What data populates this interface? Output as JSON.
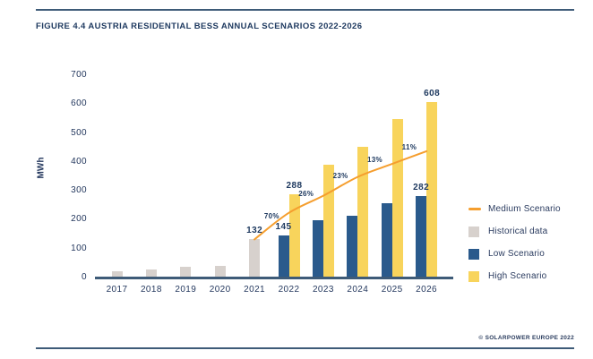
{
  "title": "FIGURE 4.4 AUSTRIA RESIDENTIAL BESS ANNUAL SCENARIOS 2022-2026",
  "footer": "© SOLARPOWER EUROPE 2022",
  "colors": {
    "navy_text": "#1F3A60",
    "axis_line": "#3E5B78",
    "historical": "#D7D1CD",
    "low": "#2A5A8C",
    "high": "#F8D45C",
    "medium_line": "#F59E2E"
  },
  "chart_data": {
    "type": "bar",
    "subtype": "grouped bars with overlaid line",
    "title": "FIGURE 4.4 AUSTRIA RESIDENTIAL BESS ANNUAL SCENARIOS 2022-2026",
    "xlabel": "",
    "ylabel": "MWh",
    "ylim": [
      0,
      700
    ],
    "yticks": [
      0,
      100,
      200,
      300,
      400,
      500,
      600,
      700
    ],
    "grid": false,
    "legend_position": "right",
    "categories": [
      "2017",
      "2018",
      "2019",
      "2020",
      "2021",
      "2022",
      "2023",
      "2024",
      "2025",
      "2026"
    ],
    "series": [
      {
        "name": "Historical data",
        "type": "bar",
        "color": "#D7D1CD",
        "values": [
          22,
          29,
          36,
          40,
          132,
          null,
          null,
          null,
          null,
          null
        ]
      },
      {
        "name": "Low Scenario",
        "type": "bar",
        "color": "#2A5A8C",
        "values": [
          null,
          null,
          null,
          null,
          null,
          145,
          197,
          215,
          258,
          282
        ]
      },
      {
        "name": "High Scenario",
        "type": "bar",
        "color": "#F8D45C",
        "values": [
          null,
          null,
          null,
          null,
          null,
          288,
          389,
          452,
          549,
          608
        ]
      },
      {
        "name": "Medium Scenario",
        "type": "line",
        "color": "#F59E2E",
        "values": [
          null,
          null,
          null,
          null,
          132,
          224,
          283,
          348,
          393,
          437
        ]
      }
    ],
    "value_labels": [
      {
        "category": "2021",
        "series": 0,
        "value": 132,
        "text": "132"
      },
      {
        "category": "2022",
        "series": 1,
        "value": 145,
        "text": "145"
      },
      {
        "category": "2022",
        "series": 2,
        "value": 288,
        "text": "288"
      },
      {
        "category": "2026",
        "series": 1,
        "value": 282,
        "text": "282"
      },
      {
        "category": "2026",
        "series": 2,
        "value": 608,
        "text": "608"
      }
    ],
    "growth_labels": [
      {
        "from": "2021",
        "to": "2022",
        "text": "70%"
      },
      {
        "from": "2022",
        "to": "2023",
        "text": "26%"
      },
      {
        "from": "2023",
        "to": "2024",
        "text": "23%"
      },
      {
        "from": "2024",
        "to": "2025",
        "text": "13%"
      },
      {
        "from": "2025",
        "to": "2026",
        "text": "11%"
      }
    ]
  },
  "legend": {
    "items": [
      {
        "label": "Medium Scenario",
        "color": "#F59E2E",
        "marker": "line"
      },
      {
        "label": "Historical data",
        "color": "#D7D1CD",
        "marker": "square"
      },
      {
        "label": "Low Scenario",
        "color": "#2A5A8C",
        "marker": "square"
      },
      {
        "label": "High Scenario",
        "color": "#F8D45C",
        "marker": "square"
      }
    ]
  }
}
